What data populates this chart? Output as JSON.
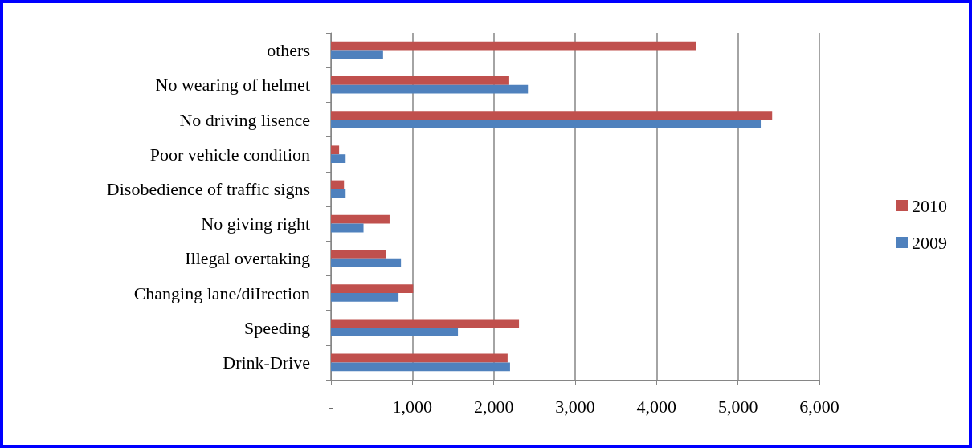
{
  "chart_data": {
    "type": "bar",
    "orientation": "horizontal",
    "categories": [
      "others",
      "No wearing of helmet",
      "No driving lisence",
      "Poor vehicle condition",
      "Disobedience of traffic signs",
      "No giving right",
      "Illegal overtaking",
      "Changing lane/diIrection",
      "Speeding",
      "Drink-Drive"
    ],
    "series": [
      {
        "name": "2010",
        "color": "#c0504d",
        "values": [
          4490,
          2190,
          5420,
          100,
          160,
          720,
          680,
          1010,
          2310,
          2170
        ]
      },
      {
        "name": "2009",
        "color": "#4f81bd",
        "values": [
          640,
          2420,
          5280,
          180,
          180,
          400,
          860,
          830,
          1560,
          2200
        ]
      }
    ],
    "xlim": [
      0,
      6000
    ],
    "xticks": [
      {
        "value": 0,
        "label": "-"
      },
      {
        "value": 1000,
        "label": "1,000"
      },
      {
        "value": 2000,
        "label": "2,000"
      },
      {
        "value": 3000,
        "label": "3,000"
      },
      {
        "value": 4000,
        "label": "4,000"
      },
      {
        "value": 5000,
        "label": "5,000"
      },
      {
        "value": 6000,
        "label": "6,000"
      }
    ],
    "grid": "x",
    "legend": "right"
  }
}
